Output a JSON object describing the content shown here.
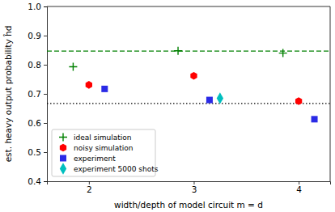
{
  "chart_data": {
    "type": "scatter",
    "x_label": "width/depth of model circuit m = d",
    "y_label": "est. heavy output probability ĥd",
    "xlim": [
      1.6,
      4.3
    ],
    "xticks": [
      2,
      3,
      4
    ],
    "ylim": [
      0.4,
      1.0
    ],
    "yticks": [
      0.4,
      0.5,
      0.6,
      0.7,
      0.8,
      0.9,
      {
        "value": 1.0,
        "label": "1.0"
      }
    ],
    "grid": false,
    "legend": "lower left",
    "series": [
      {
        "name": "ideal simulation",
        "color": "#008000",
        "marker": "plus",
        "x": [
          1.85,
          2.85,
          3.85
        ],
        "values": [
          0.793,
          0.848,
          0.84
        ]
      },
      {
        "name": "noisy simulation",
        "color": "#ff0000",
        "marker": "hexagon",
        "x": [
          2.0,
          3.0,
          4.0
        ],
        "values": [
          0.731,
          0.762,
          0.675
        ]
      },
      {
        "name": "experiment",
        "color": "#2a2ae6",
        "marker": "square",
        "x": [
          2.15,
          3.15,
          4.15
        ],
        "values": [
          0.717,
          0.679,
          0.613
        ]
      },
      {
        "name": "experiment 5000 shots",
        "color": "#00bfbf",
        "marker": "diamond",
        "x": [
          3.25
        ],
        "values": [
          0.685
        ]
      }
    ],
    "reference_lines": [
      {
        "value": 0.847,
        "color": "#008000",
        "line_style": "dashed"
      },
      {
        "value": 0.667,
        "color": "#000000",
        "line_style": "dotted"
      }
    ]
  }
}
